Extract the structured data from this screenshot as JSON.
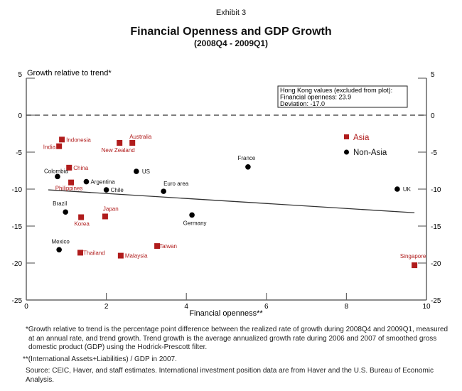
{
  "header": {
    "exhibit": "Exhibit 3",
    "title": "Financial Openness and GDP Growth",
    "subtitle": "(2008Q4 - 2009Q1)"
  },
  "colors": {
    "asia": "#b01c1c",
    "non_asia": "#000000",
    "axis": "#666666",
    "trend": "#333333"
  },
  "chart_data": {
    "type": "scatter",
    "title": "Financial Openness and GDP Growth",
    "subtitle": "(2008Q4 - 2009Q1)",
    "xlabel": "Financial openness**",
    "ylabel": "Growth relative to trend*",
    "xlim": [
      0,
      10
    ],
    "ylim": [
      -25,
      5
    ],
    "xticks": [
      0,
      2,
      4,
      6,
      8,
      10
    ],
    "yticks": [
      5,
      0,
      -5,
      -10,
      -15,
      -20,
      -25
    ],
    "zero_line": "dashed",
    "grid": false,
    "legend": {
      "placement": "top-right",
      "entries": [
        {
          "name": "Asia",
          "marker": "square"
        },
        {
          "name": "Non-Asia",
          "marker": "circle"
        }
      ]
    },
    "annotation": {
      "lines": [
        "Hong Kong values (excluded from plot):",
        "Financial openness: 23.9",
        "Deviation: -17.0"
      ]
    },
    "trend_line": {
      "x": [
        0.55,
        9.7
      ],
      "y": [
        -10.1,
        -13.2
      ]
    },
    "series": [
      {
        "name": "Asia",
        "points": [
          {
            "label": "Indonesia",
            "x": 0.89,
            "y": -3.3
          },
          {
            "label": "India",
            "x": 0.82,
            "y": -4.2
          },
          {
            "label": "New Zealand",
            "x": 2.33,
            "y": -3.75
          },
          {
            "label": "Australia",
            "x": 2.65,
            "y": -3.75
          },
          {
            "label": "China",
            "x": 1.07,
            "y": -7.1
          },
          {
            "label": "Philippines",
            "x": 1.12,
            "y": -9.1
          },
          {
            "label": "Korea",
            "x": 1.37,
            "y": -13.8
          },
          {
            "label": "Japan",
            "x": 1.97,
            "y": -13.7
          },
          {
            "label": "Thailand",
            "x": 1.35,
            "y": -18.6
          },
          {
            "label": "Malaysia",
            "x": 2.36,
            "y": -19.0
          },
          {
            "label": "Taiwan",
            "x": 3.27,
            "y": -17.7
          },
          {
            "label": "Singapore",
            "x": 9.7,
            "y": -20.3
          }
        ]
      },
      {
        "name": "Non-Asia",
        "points": [
          {
            "label": "Colombia",
            "x": 0.78,
            "y": -8.3
          },
          {
            "label": "Argentina",
            "x": 1.5,
            "y": -9.0
          },
          {
            "label": "Chile",
            "x": 2.0,
            "y": -10.1
          },
          {
            "label": "US",
            "x": 2.75,
            "y": -7.6
          },
          {
            "label": "Euro area",
            "x": 3.43,
            "y": -10.3
          },
          {
            "label": "France",
            "x": 5.54,
            "y": -7.0
          },
          {
            "label": "Germany",
            "x": 4.14,
            "y": -13.5
          },
          {
            "label": "Brazil",
            "x": 0.98,
            "y": -13.1
          },
          {
            "label": "Mexico",
            "x": 0.82,
            "y": -18.2
          },
          {
            "label": "UK",
            "x": 9.27,
            "y": -10.0
          }
        ]
      }
    ]
  },
  "notes": {
    "growth": "*Growth relative to trend is the percentage point difference between the realized rate of growth during 2008Q4 and 2009Q1, measured at an annual rate, and trend growth. Trend growth is the average annualized growth rate during 2006 and 2007 of smoothed gross domestic product (GDP) using the Hodrick-Prescott filter.",
    "openness": "**(International Assets+Liabilities) / GDP in 2007.",
    "source": "Source: CEIC, Haver, and staff estimates.  International investment position data are from Haver and the U.S. Bureau of Economic Analysis."
  }
}
